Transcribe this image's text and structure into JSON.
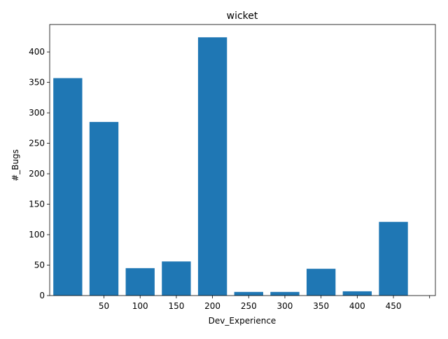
{
  "chart_data": {
    "type": "bar",
    "title": "wicket",
    "xlabel": "Dev_Experience",
    "ylabel": "#_Bugs",
    "bars": [
      {
        "x": 0,
        "value": 357
      },
      {
        "x": 50,
        "value": 285
      },
      {
        "x": 100,
        "value": 45
      },
      {
        "x": 150,
        "value": 56
      },
      {
        "x": 200,
        "value": 424
      },
      {
        "x": 250,
        "value": 6
      },
      {
        "x": 300,
        "value": 6
      },
      {
        "x": 350,
        "value": 44
      },
      {
        "x": 400,
        "value": 7
      },
      {
        "x": 450,
        "value": 121
      }
    ],
    "bar_width_data": 40,
    "xlim": [
      -25,
      508
    ],
    "ylim": [
      0,
      445
    ],
    "x_ticks": [
      50,
      100,
      150,
      200,
      250,
      300,
      350,
      400,
      450,
      500
    ],
    "x_tick_labels": [
      "50",
      "100",
      "150",
      "200",
      "250",
      "300",
      "350",
      "400",
      "450",
      ""
    ],
    "y_ticks": [
      0,
      50,
      100,
      150,
      200,
      250,
      300,
      350,
      400
    ],
    "y_tick_labels": [
      "0",
      "50",
      "100",
      "150",
      "200",
      "250",
      "300",
      "350",
      "400"
    ],
    "bar_color": "#1f77b4",
    "grid": false,
    "legend": "none"
  }
}
